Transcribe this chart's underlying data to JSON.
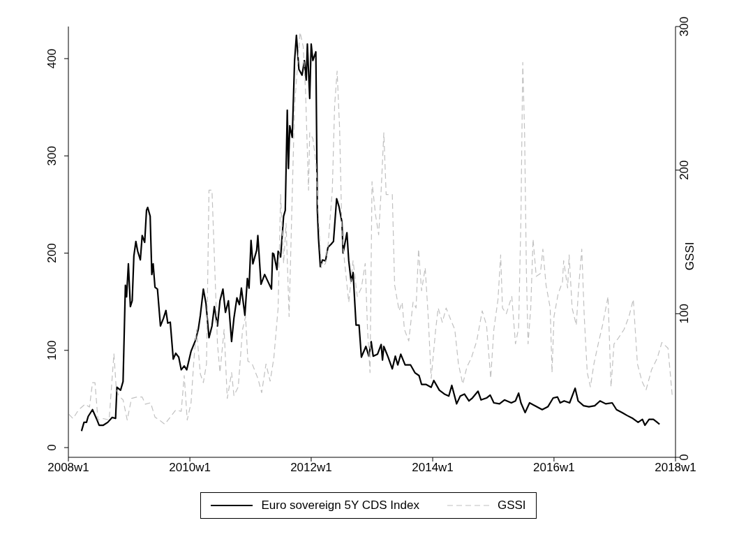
{
  "chart_data": {
    "type": "line",
    "y2label": "GSSI",
    "xlim": [
      "2008-01-01",
      "2018-01-01"
    ],
    "xticks": [
      {
        "value": "2008-01-01",
        "label": "2008w1"
      },
      {
        "value": "2010-01-01",
        "label": "2010w1"
      },
      {
        "value": "2012-01-01",
        "label": "2012w1"
      },
      {
        "value": "2014-01-01",
        "label": "2014w1"
      },
      {
        "value": "2016-01-01",
        "label": "2016w1"
      },
      {
        "value": "2018-01-01",
        "label": "2018w1"
      }
    ],
    "ylim": [
      -10,
      433
    ],
    "yticks": [
      0,
      100,
      200,
      300,
      400
    ],
    "y2lim": [
      0,
      300
    ],
    "y2ticks": [
      0,
      100,
      200,
      300
    ],
    "legend": "bottom",
    "marker": "none",
    "series": [
      {
        "name": "Euro sovereign 5Y CDS Index",
        "color": "#000000",
        "line_style": "solid",
        "x": [
          "2008-03-20",
          "2008-04-04",
          "2008-04-19",
          "2008-04-29",
          "2008-05-25",
          "2008-06-20",
          "2008-07-04",
          "2008-07-29",
          "2008-08-25",
          "2008-09-20",
          "2008-10-11",
          "2008-10-19",
          "2008-11-10",
          "2008-11-25",
          "2008-12-09",
          "2008-12-16",
          "2008-12-27",
          "2009-01-08",
          "2009-01-19",
          "2009-01-29",
          "2009-02-10",
          "2009-02-21",
          "2009-03-09",
          "2009-03-20",
          "2009-04-04",
          "2009-04-15",
          "2009-04-22",
          "2009-05-07",
          "2009-05-17",
          "2009-05-25",
          "2009-06-05",
          "2009-06-20",
          "2009-07-08",
          "2009-07-26",
          "2009-08-10",
          "2009-08-21",
          "2009-09-05",
          "2009-09-23",
          "2009-10-08",
          "2009-10-26",
          "2009-11-10",
          "2009-11-28",
          "2009-12-13",
          "2010-01-08",
          "2010-02-03",
          "2010-02-21",
          "2010-03-05",
          "2010-03-23",
          "2010-04-08",
          "2010-04-26",
          "2010-05-14",
          "2010-05-28",
          "2010-06-16",
          "2010-07-01",
          "2010-07-19",
          "2010-08-03",
          "2010-08-21",
          "2010-09-09",
          "2010-09-23",
          "2010-10-11",
          "2010-10-26",
          "2010-11-07",
          "2010-11-28",
          "2010-12-13",
          "2010-12-23",
          "2011-01-04",
          "2011-01-15",
          "2011-02-07",
          "2011-02-14",
          "2011-03-05",
          "2011-03-27",
          "2011-04-15",
          "2011-05-07",
          "2011-05-14",
          "2011-05-21",
          "2011-06-09",
          "2011-06-16",
          "2011-07-01",
          "2011-07-19",
          "2011-07-29",
          "2011-08-10",
          "2011-08-17",
          "2011-08-25",
          "2011-09-09",
          "2011-09-23",
          "2011-10-04",
          "2011-10-19",
          "2011-11-07",
          "2011-11-21",
          "2011-12-02",
          "2011-12-09",
          "2011-12-23",
          "2012-01-01",
          "2012-01-11",
          "2012-01-29",
          "2012-02-07",
          "2012-02-14",
          "2012-02-25",
          "2012-03-09",
          "2012-03-27",
          "2012-04-11",
          "2012-04-29",
          "2012-05-14",
          "2012-06-02",
          "2012-06-16",
          "2012-07-04",
          "2012-07-11",
          "2012-08-03",
          "2012-08-14",
          "2012-08-28",
          "2012-09-09",
          "2012-09-27",
          "2012-10-15",
          "2012-10-29",
          "2012-11-25",
          "2012-12-13",
          "2012-12-27",
          "2013-01-08",
          "2013-02-03",
          "2013-02-25",
          "2013-03-05",
          "2013-03-13",
          "2013-04-08",
          "2013-05-03",
          "2013-05-21",
          "2013-06-05",
          "2013-06-23",
          "2013-07-19",
          "2013-08-21",
          "2013-09-16",
          "2013-10-11",
          "2013-10-26",
          "2013-11-21",
          "2013-12-23",
          "2014-01-08",
          "2014-02-10",
          "2014-03-13",
          "2014-04-08",
          "2014-04-26",
          "2014-05-25",
          "2014-06-16",
          "2014-07-11",
          "2014-08-07",
          "2014-08-28",
          "2014-10-01",
          "2014-10-19",
          "2014-11-21",
          "2014-12-13",
          "2015-01-04",
          "2015-02-07",
          "2015-03-09",
          "2015-04-19",
          "2015-05-14",
          "2015-06-02",
          "2015-06-16",
          "2015-07-11",
          "2015-08-07",
          "2015-09-09",
          "2015-10-22",
          "2015-11-25",
          "2015-12-27",
          "2016-01-22",
          "2016-02-07",
          "2016-03-02",
          "2016-04-04",
          "2016-05-07",
          "2016-05-25",
          "2016-06-27",
          "2016-07-29",
          "2016-09-02",
          "2016-10-04",
          "2016-11-07",
          "2016-12-16",
          "2017-01-11",
          "2017-02-14",
          "2017-03-16",
          "2017-04-19",
          "2017-05-21",
          "2017-06-16",
          "2017-07-01",
          "2017-07-26",
          "2017-08-21",
          "2017-09-05",
          "2017-09-27"
        ],
        "values": [
          17,
          26,
          26,
          32,
          39,
          29,
          23,
          23,
          26,
          31,
          30,
          62,
          59,
          68,
          167,
          155,
          189,
          145,
          151,
          197,
          212,
          202,
          193,
          218,
          211,
          244,
          247,
          238,
          178,
          189,
          165,
          163,
          125,
          133,
          141,
          128,
          129,
          91,
          97,
          93,
          80,
          84,
          80,
          99,
          110,
          122,
          136,
          163,
          148,
          113,
          125,
          145,
          125,
          151,
          163,
          139,
          151,
          109,
          133,
          154,
          147,
          164,
          136,
          174,
          164,
          213,
          189,
          203,
          218,
          168,
          178,
          171,
          163,
          200,
          199,
          183,
          202,
          196,
          238,
          244,
          347,
          287,
          331,
          319,
          398,
          424,
          389,
          383,
          398,
          378,
          415,
          359,
          415,
          398,
          407,
          244,
          215,
          186,
          193,
          192,
          206,
          209,
          212,
          256,
          248,
          232,
          200,
          221,
          192,
          171,
          180,
          126,
          126,
          93,
          104,
          94,
          109,
          94,
          96,
          106,
          90,
          104,
          93,
          81,
          94,
          85,
          96,
          85,
          85,
          77,
          74,
          65,
          65,
          62,
          69,
          59,
          55,
          53,
          64,
          45,
          53,
          55,
          48,
          51,
          58,
          49,
          51,
          54,
          46,
          45,
          49,
          46,
          48,
          56,
          46,
          36,
          46,
          43,
          39,
          42,
          51,
          52,
          46,
          48,
          46,
          61,
          48,
          43,
          42,
          43,
          48,
          45,
          46,
          39,
          36,
          33,
          30,
          26,
          29,
          23,
          29,
          29,
          27,
          24
        ]
      },
      {
        "name": "GSSI",
        "color": "#c0c0c0",
        "line_style": "dashed",
        "axis": "y2",
        "x": [
          "2008-01-04",
          "2008-01-29",
          "2008-03-02",
          "2008-04-11",
          "2008-05-07",
          "2008-05-25",
          "2008-06-09",
          "2008-06-27",
          "2008-07-29",
          "2008-09-02",
          "2008-10-01",
          "2008-10-15",
          "2008-10-29",
          "2008-11-25",
          "2008-12-20",
          "2009-01-15",
          "2009-02-17",
          "2009-03-20",
          "2009-04-08",
          "2009-05-10",
          "2009-06-05",
          "2009-07-01",
          "2009-08-03",
          "2009-09-05",
          "2009-10-08",
          "2009-11-10",
          "2009-11-28",
          "2009-12-16",
          "2010-01-08",
          "2010-01-26",
          "2010-02-10",
          "2010-03-05",
          "2010-03-23",
          "2010-04-11",
          "2010-04-26",
          "2010-05-14",
          "2010-05-28",
          "2010-06-16",
          "2010-07-01",
          "2010-07-26",
          "2010-08-14",
          "2010-09-09",
          "2010-09-23",
          "2010-10-19",
          "2010-11-14",
          "2010-12-02",
          "2010-12-16",
          "2011-01-11",
          "2011-02-14",
          "2011-03-09",
          "2011-04-04",
          "2011-04-29",
          "2011-05-21",
          "2011-06-16",
          "2011-07-01",
          "2011-07-19",
          "2011-08-03",
          "2011-08-21",
          "2011-09-09",
          "2011-09-23",
          "2011-10-11",
          "2011-10-26",
          "2011-11-14",
          "2011-11-28",
          "2011-12-16",
          "2011-12-23",
          "2012-01-11",
          "2012-01-29",
          "2012-02-14",
          "2012-03-02",
          "2012-03-27",
          "2012-04-11",
          "2012-05-07",
          "2012-05-21",
          "2012-06-05",
          "2012-06-20",
          "2012-07-04",
          "2012-07-19",
          "2012-08-14",
          "2012-09-09",
          "2012-10-04",
          "2012-10-29",
          "2012-11-21",
          "2012-12-05",
          "2012-12-20",
          "2013-01-01",
          "2013-01-22",
          "2013-02-10",
          "2013-02-25",
          "2013-03-13",
          "2013-03-27",
          "2013-04-15",
          "2013-05-03",
          "2013-05-17",
          "2013-06-13",
          "2013-07-01",
          "2013-07-15",
          "2013-08-10",
          "2013-09-05",
          "2013-09-23",
          "2013-10-08",
          "2013-10-26",
          "2013-11-17",
          "2013-12-05",
          "2013-12-23",
          "2014-01-19",
          "2014-02-03",
          "2014-02-28",
          "2014-03-23",
          "2014-04-19",
          "2014-05-14",
          "2014-06-05",
          "2014-07-01",
          "2014-07-26",
          "2014-08-21",
          "2014-09-23",
          "2014-10-26",
          "2014-11-21",
          "2014-12-16",
          "2015-01-04",
          "2015-01-29",
          "2015-02-14",
          "2015-02-25",
          "2015-03-20",
          "2015-04-22",
          "2015-05-14",
          "2015-06-02",
          "2015-06-16",
          "2015-06-27",
          "2015-07-08",
          "2015-07-19",
          "2015-07-29",
          "2015-08-14",
          "2015-08-28",
          "2015-09-16",
          "2015-10-11",
          "2015-10-26",
          "2015-11-14",
          "2015-12-09",
          "2015-12-20",
          "2016-01-01",
          "2016-01-26",
          "2016-02-21",
          "2016-02-28",
          "2016-03-23",
          "2016-04-01",
          "2016-04-19",
          "2016-05-14",
          "2016-05-28",
          "2016-06-16",
          "2016-07-01",
          "2016-07-19",
          "2016-08-07",
          "2016-08-28",
          "2016-09-23",
          "2016-10-19",
          "2016-11-21",
          "2016-12-09",
          "2016-12-27",
          "2017-01-22",
          "2017-02-25",
          "2017-03-27",
          "2017-04-22",
          "2017-05-17",
          "2017-06-13",
          "2017-07-08",
          "2017-08-10",
          "2017-09-13",
          "2017-10-11",
          "2017-11-17",
          "2017-12-13"
        ],
        "values": [
          30,
          27,
          33,
          37,
          35,
          52,
          52,
          26,
          27,
          26,
          72,
          48,
          43,
          40,
          26,
          41,
          42,
          42,
          37,
          38,
          28,
          26,
          23,
          28,
          33,
          32,
          57,
          26,
          38,
          69,
          89,
          58,
          52,
          65,
          186,
          186,
          141,
          79,
          59,
          89,
          41,
          59,
          43,
          49,
          89,
          98,
          67,
          65,
          55,
          45,
          65,
          53,
          69,
          104,
          183,
          135,
          163,
          98,
          183,
          245,
          273,
          296,
          286,
          255,
          186,
          226,
          222,
          206,
          167,
          132,
          135,
          147,
          186,
          245,
          269,
          229,
          157,
          137,
          108,
          137,
          112,
          118,
          135,
          89,
          59,
          192,
          169,
          155,
          186,
          226,
          183,
          183,
          183,
          120,
          102,
          108,
          89,
          81,
          108,
          104,
          145,
          116,
          132,
          98,
          55,
          89,
          104,
          94,
          104,
          96,
          89,
          65,
          51,
          63,
          69,
          81,
          102,
          92,
          55,
          89,
          110,
          141,
          104,
          100,
          112,
          79,
          90,
          167,
          275,
          226,
          128,
          79,
          104,
          152,
          126,
          128,
          145,
          120,
          104,
          59,
          98,
          114,
          122,
          137,
          118,
          141,
          104,
          92,
          118,
          145,
          98,
          59,
          49,
          65,
          79,
          92,
          112,
          49,
          79,
          83,
          89,
          98,
          110,
          65,
          53,
          47,
          61,
          69,
          80,
          76,
          42
        ]
      }
    ]
  }
}
